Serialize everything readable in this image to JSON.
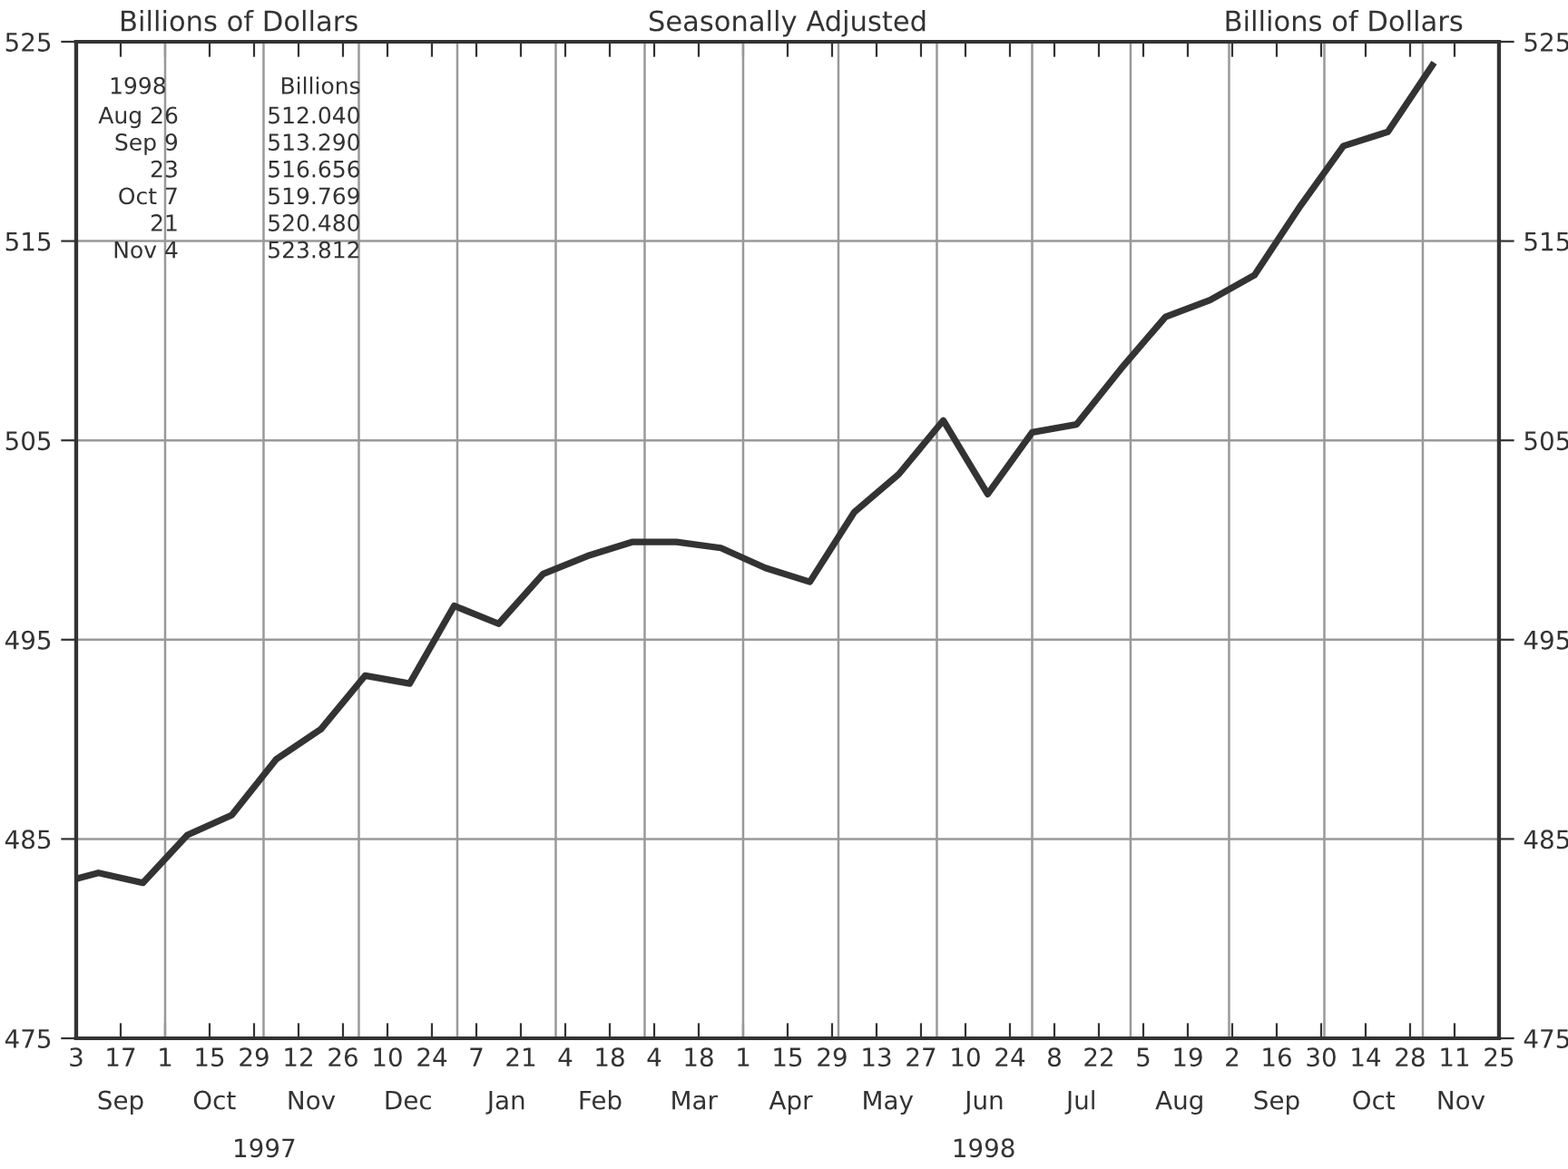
{
  "chart_data": {
    "type": "line",
    "subtitle": "Seasonally Adjusted",
    "ylabel": "Billions of Dollars",
    "y2label": "Billions of Dollars",
    "x": [
      "1997-09-03",
      "1997-09-10",
      "1997-09-24",
      "1997-10-08",
      "1997-10-22",
      "1997-11-05",
      "1997-11-19",
      "1997-12-03",
      "1997-12-17",
      "1997-12-31",
      "1998-01-14",
      "1998-01-28",
      "1998-02-11",
      "1998-02-25",
      "1998-03-11",
      "1998-03-25",
      "1998-04-08",
      "1998-04-22",
      "1998-05-06",
      "1998-05-20",
      "1998-06-03",
      "1998-06-17",
      "1998-07-01",
      "1998-07-15",
      "1998-07-29",
      "1998-08-12",
      "1998-08-26",
      "1998-09-09",
      "1998-09-23",
      "1998-10-07",
      "1998-10-21",
      "1998-11-04"
    ],
    "series": [
      {
        "color": "#333333",
        "values": [
          483.0,
          483.3,
          482.8,
          485.2,
          486.2,
          489.0,
          490.5,
          493.2,
          492.8,
          496.7,
          495.8,
          498.3,
          499.2,
          499.9,
          499.9,
          499.6,
          498.6,
          497.9,
          501.4,
          503.3,
          506.0,
          502.3,
          505.4,
          505.8,
          508.6,
          511.2,
          512.04,
          513.29,
          516.656,
          519.769,
          520.48,
          523.812
        ]
      }
    ],
    "xlim": [
      "1997-09-03",
      "1998-11-25"
    ],
    "xticks": [
      {
        "value": "1997-09-03",
        "label": "3"
      },
      {
        "value": "1997-09-17",
        "label": "17"
      },
      {
        "value": "1997-10-01",
        "label": "1"
      },
      {
        "value": "1997-10-15",
        "label": "15"
      },
      {
        "value": "1997-10-29",
        "label": "29"
      },
      {
        "value": "1997-11-12",
        "label": "12"
      },
      {
        "value": "1997-11-26",
        "label": "26"
      },
      {
        "value": "1997-12-10",
        "label": "10"
      },
      {
        "value": "1997-12-24",
        "label": "24"
      },
      {
        "value": "1998-01-07",
        "label": "7"
      },
      {
        "value": "1998-01-21",
        "label": "21"
      },
      {
        "value": "1998-02-04",
        "label": "4"
      },
      {
        "value": "1998-02-18",
        "label": "18"
      },
      {
        "value": "1998-03-04",
        "label": "4"
      },
      {
        "value": "1998-03-18",
        "label": "18"
      },
      {
        "value": "1998-04-01",
        "label": "1"
      },
      {
        "value": "1998-04-15",
        "label": "15"
      },
      {
        "value": "1998-04-29",
        "label": "29"
      },
      {
        "value": "1998-05-13",
        "label": "13"
      },
      {
        "value": "1998-05-27",
        "label": "27"
      },
      {
        "value": "1998-06-10",
        "label": "10"
      },
      {
        "value": "1998-06-24",
        "label": "24"
      },
      {
        "value": "1998-07-08",
        "label": "8"
      },
      {
        "value": "1998-07-22",
        "label": "22"
      },
      {
        "value": "1998-08-05",
        "label": "5"
      },
      {
        "value": "1998-08-19",
        "label": "19"
      },
      {
        "value": "1998-09-02",
        "label": "2"
      },
      {
        "value": "1998-09-16",
        "label": "16"
      },
      {
        "value": "1998-09-30",
        "label": "30"
      },
      {
        "value": "1998-10-14",
        "label": "14"
      },
      {
        "value": "1998-10-28",
        "label": "28"
      },
      {
        "value": "1998-11-11",
        "label": "11"
      },
      {
        "value": "1998-11-25",
        "label": "25"
      }
    ],
    "ylim": [
      475,
      525
    ],
    "yticks": [
      475,
      485,
      495,
      505,
      515,
      525
    ],
    "y2lim": [
      475,
      525
    ],
    "y2ticks": [
      475,
      485,
      495,
      505,
      515,
      525
    ],
    "grid": "y",
    "ref_lines": [
      {
        "axis": "x",
        "value": "1997-10-01"
      },
      {
        "axis": "x",
        "value": "1997-11-01"
      },
      {
        "axis": "x",
        "value": "1997-12-01"
      },
      {
        "axis": "x",
        "value": "1998-01-01"
      },
      {
        "axis": "x",
        "value": "1998-02-01"
      },
      {
        "axis": "x",
        "value": "1998-03-01"
      },
      {
        "axis": "x",
        "value": "1998-04-01"
      },
      {
        "axis": "x",
        "value": "1998-05-01"
      },
      {
        "axis": "x",
        "value": "1998-06-01"
      },
      {
        "axis": "x",
        "value": "1998-07-01"
      },
      {
        "axis": "x",
        "value": "1998-08-01"
      },
      {
        "axis": "x",
        "value": "1998-09-01"
      },
      {
        "axis": "x",
        "value": "1998-10-01"
      },
      {
        "axis": "x",
        "value": "1998-11-01"
      }
    ],
    "annotations": [
      "Sep",
      "Oct",
      "Nov",
      "Dec",
      "Jan",
      "Feb",
      "Mar",
      "Apr",
      "May",
      "Jun",
      "Jul",
      "Aug",
      "Sep",
      "Oct",
      "Nov",
      "1997",
      "1998",
      "1998",
      "Billions",
      "Aug 26",
      "Sep 9",
      "23",
      "Oct 7",
      "21",
      "Nov 4",
      "512.040",
      "513.290",
      "516.656",
      "519.769",
      "520.480",
      "523.812"
    ]
  }
}
